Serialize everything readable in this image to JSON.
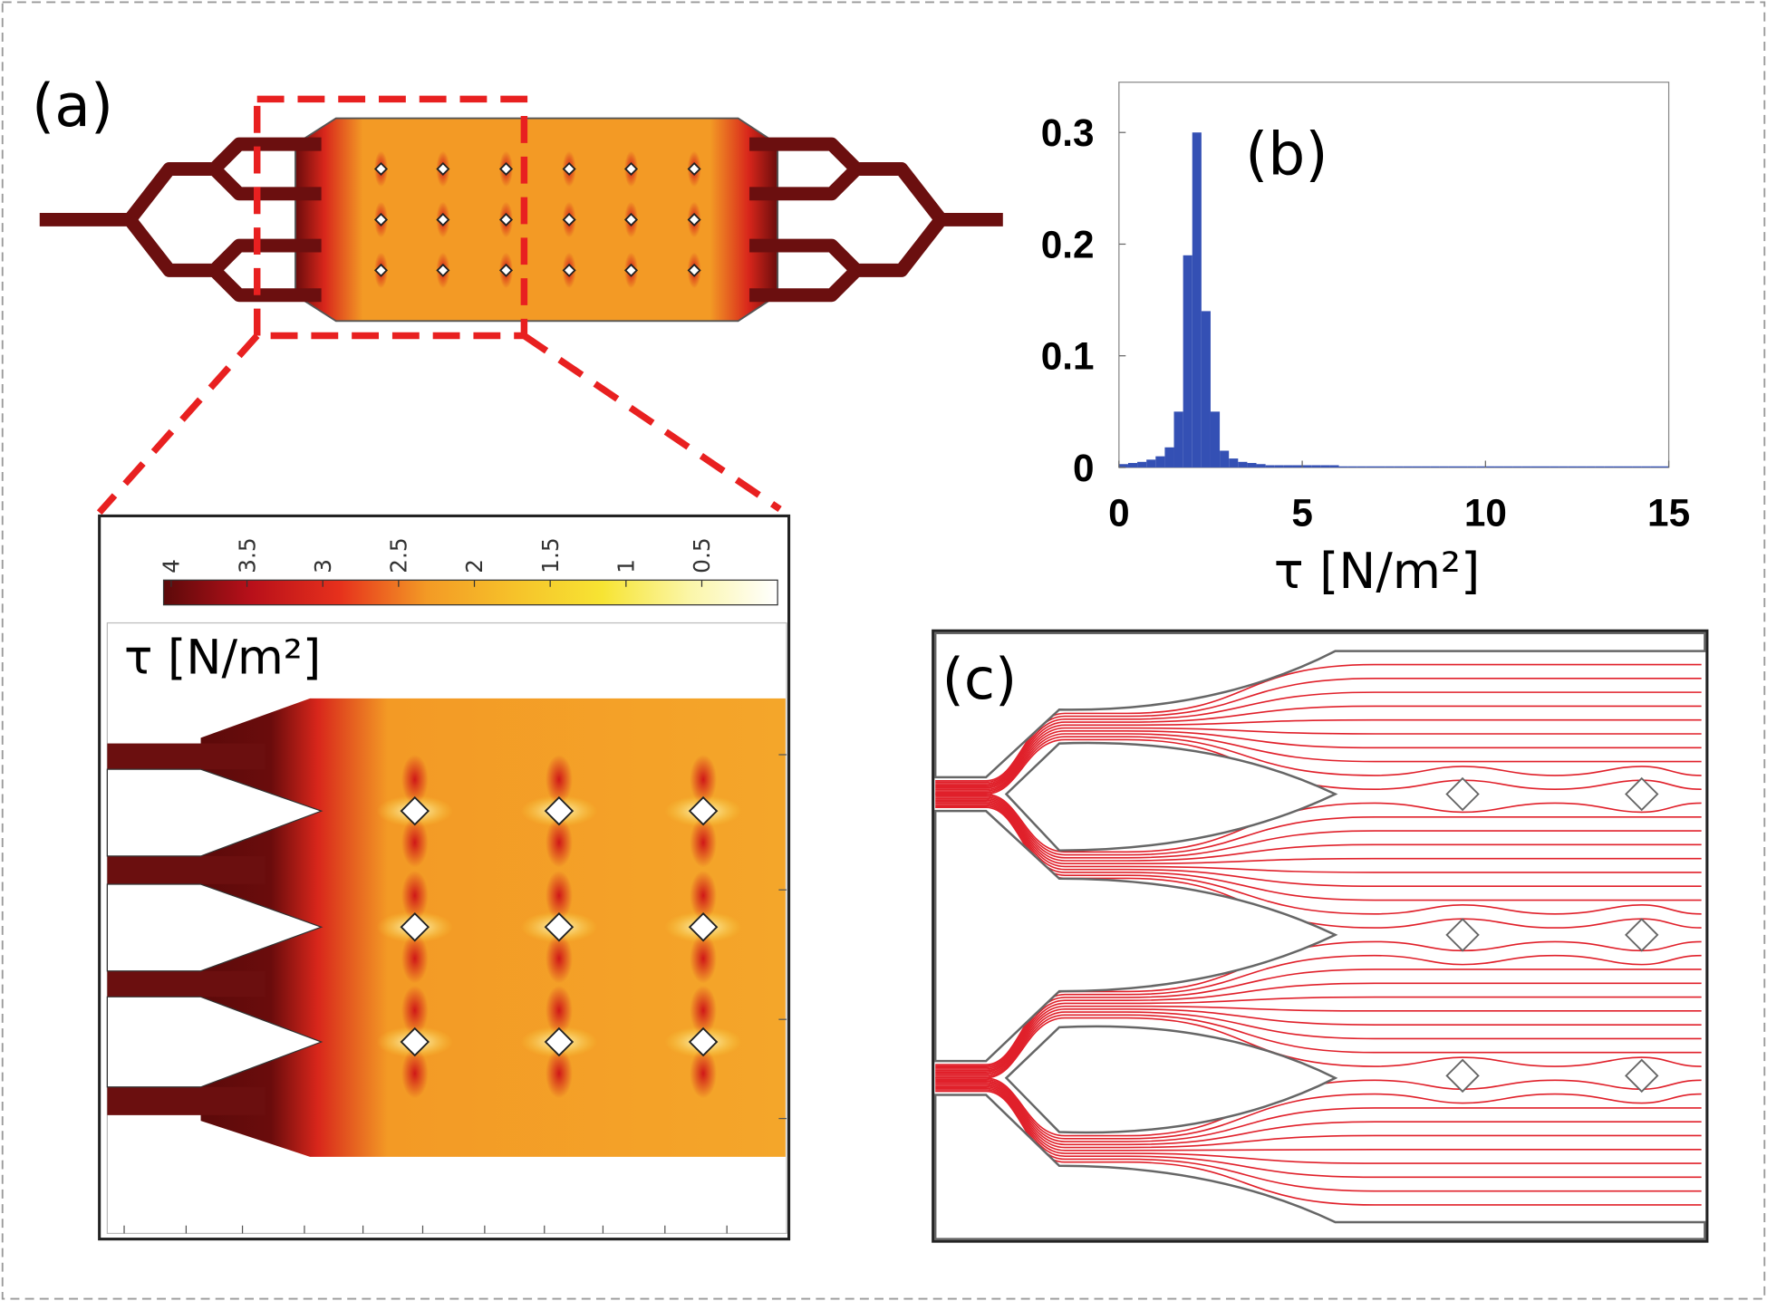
{
  "chart_data": [
    {
      "type": "histogram",
      "panel_label": "(b)",
      "x_label": "τ [N/m²]",
      "bins": [
        0,
        0.25,
        0.5,
        0.75,
        1,
        1.25,
        1.5,
        1.75,
        2,
        2.25,
        2.5,
        2.75,
        3,
        3.25,
        3.5,
        3.75,
        4,
        4.25,
        4.5,
        4.75,
        5,
        5.25,
        5.5,
        5.75,
        6,
        6.25,
        6.5,
        6.75,
        7,
        7.25,
        7.5,
        7.75,
        8,
        8.25,
        8.5,
        8.75,
        9,
        9.25,
        9.5,
        9.75,
        10,
        10.25,
        10.5,
        10.75,
        11,
        11.25,
        11.5,
        11.75,
        12,
        12.25,
        12.5,
        12.75,
        13,
        13.25,
        13.5,
        13.75,
        14,
        14.25,
        14.5,
        14.75,
        15
      ],
      "values": [
        0.003,
        0.004,
        0.005,
        0.007,
        0.01,
        0.018,
        0.05,
        0.19,
        0.3,
        0.14,
        0.05,
        0.015,
        0.008,
        0.005,
        0.004,
        0.003,
        0.002,
        0.002,
        0.002,
        0.002,
        0.002,
        0.002,
        0.002,
        0.002,
        0.001,
        0.001,
        0.001,
        0.001,
        0.001,
        0.001,
        0.001,
        0.001,
        0.001,
        0.001,
        0.001,
        0.001,
        0.001,
        0.001,
        0.001,
        0.001,
        0.001,
        0.001,
        0.001,
        0.001,
        0.001,
        0.001,
        0.001,
        0.001,
        0.001,
        0.001,
        0.001,
        0.001,
        0.001,
        0.001,
        0.001,
        0.001,
        0.001,
        0.001,
        0.001,
        0.001
      ],
      "color": "#3450b4",
      "xlim": [
        0,
        15
      ],
      "ylim": [
        0,
        0.345
      ],
      "xticks": [
        0,
        5,
        10,
        15
      ],
      "yticks": [
        0,
        0.1,
        0.2,
        0.3
      ]
    },
    {
      "type": "colorbar",
      "title": "τ [N/m²]",
      "xlim": [
        4.05,
        0
      ],
      "xticks": [
        4,
        3.5,
        3,
        2.5,
        2,
        1.5,
        1,
        0.5
      ],
      "colors": [
        "#5c0a0a",
        "#b8101a",
        "#e6301c",
        "#f39a25",
        "#f6c22a",
        "#f7e433",
        "#fbf6a8",
        "#ffffff"
      ]
    }
  ],
  "panels": {
    "a": "(a)",
    "c": "(c)"
  }
}
